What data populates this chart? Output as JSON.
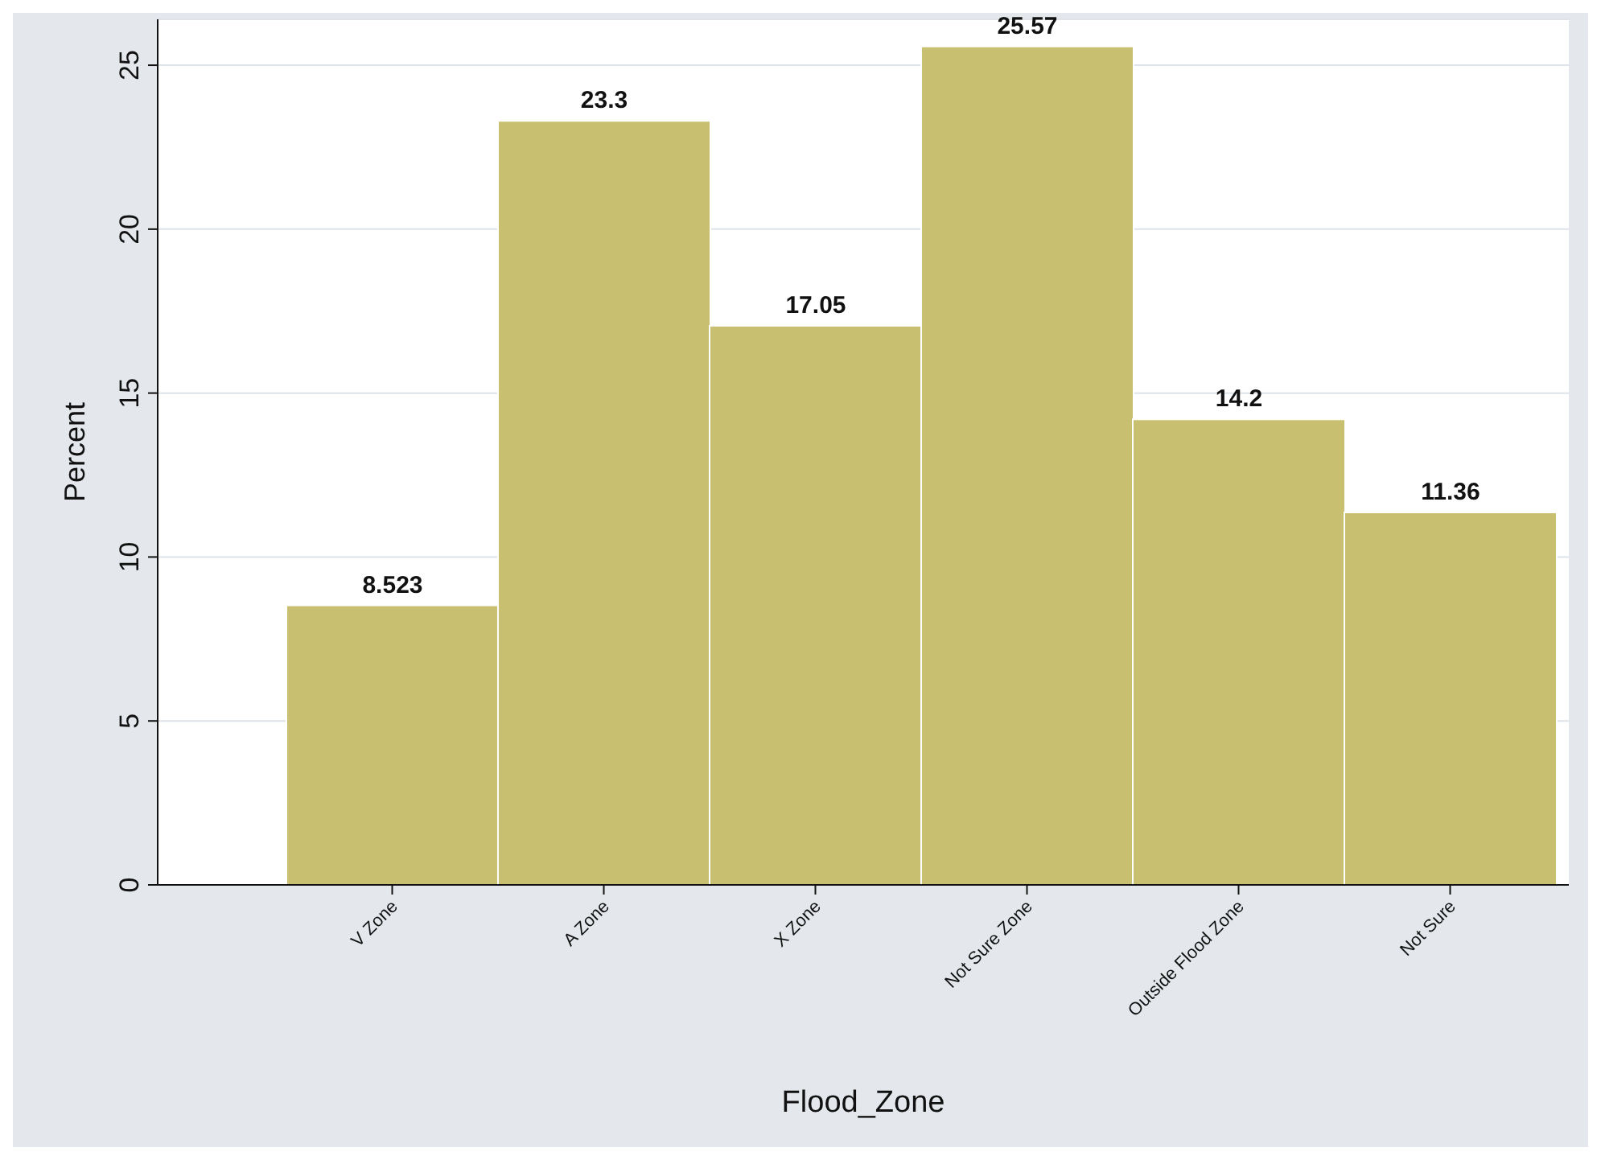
{
  "chart_data": {
    "type": "bar",
    "categories": [
      "V Zone",
      "A Zone",
      "X Zone",
      "Not Sure Zone",
      "Outside Flood Zone",
      "Not Sure"
    ],
    "values": [
      8.523,
      23.3,
      17.05,
      25.57,
      14.2,
      11.36
    ],
    "color": "#c8c070",
    "data_labels": true,
    "xlabel": "Flood_Zone",
    "ylabel": "Percent",
    "ylim": [
      0,
      26.4
    ],
    "yticks": [
      0,
      5,
      10,
      15,
      20,
      25
    ],
    "grid": "y"
  }
}
